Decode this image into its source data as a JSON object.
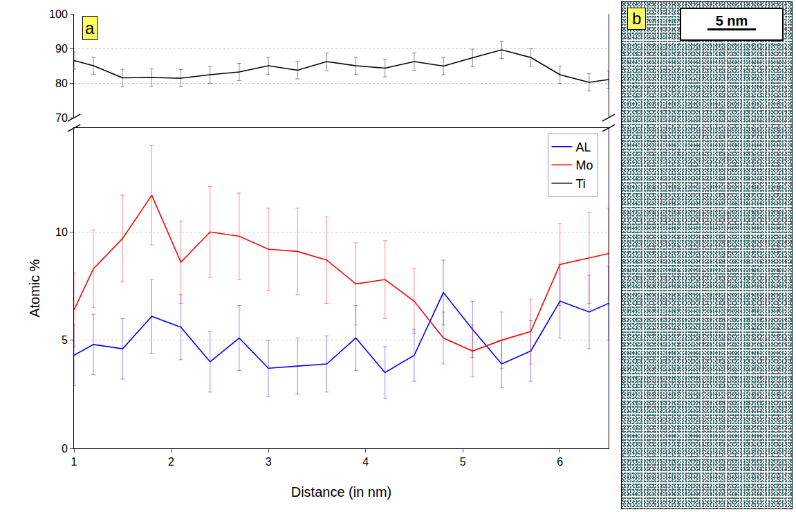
{
  "chart_data": {
    "type": "line",
    "panel_label": "a",
    "xlabel": "Distance (in nm)",
    "ylabel": "Atomic %",
    "x": [
      1.0,
      1.2,
      1.5,
      1.8,
      2.1,
      2.4,
      2.7,
      3.0,
      3.3,
      3.6,
      3.9,
      4.2,
      4.5,
      4.8,
      5.1,
      5.4,
      5.7,
      6.0,
      6.3,
      6.5
    ],
    "xlim": [
      1,
      6.5
    ],
    "xticks": [
      1,
      2,
      3,
      4,
      5,
      6
    ],
    "ylim": [
      0,
      14.8
    ],
    "yticks": [
      0,
      5,
      10
    ],
    "y2lim": [
      70,
      100
    ],
    "y2ticks": [
      70,
      80,
      90,
      100
    ],
    "grid": true,
    "legend": "top right",
    "series": [
      {
        "name": "AL",
        "color": "#0000ff",
        "values": [
          4.3,
          4.8,
          4.6,
          6.1,
          5.6,
          4.0,
          5.1,
          3.7,
          3.8,
          3.9,
          5.1,
          3.5,
          4.3,
          7.2,
          5.5,
          3.9,
          4.5,
          6.8,
          6.3,
          6.7
        ],
        "errors": [
          1.4,
          1.4,
          1.4,
          1.7,
          1.5,
          1.4,
          1.5,
          1.3,
          1.3,
          1.3,
          1.5,
          1.2,
          1.2,
          1.5,
          1.3,
          1.1,
          1.4,
          1.7,
          1.7,
          1.7
        ]
      },
      {
        "name": "Mo",
        "color": "#ff0000",
        "values": [
          6.4,
          8.3,
          9.7,
          11.7,
          8.6,
          10.0,
          9.8,
          9.2,
          9.1,
          8.7,
          7.6,
          7.8,
          6.8,
          5.1,
          4.5,
          5.0,
          5.4,
          8.5,
          8.8,
          9.0
        ],
        "errors": [
          1.7,
          1.8,
          2.0,
          2.3,
          1.9,
          2.1,
          2.0,
          1.9,
          2.0,
          2.0,
          1.9,
          1.8,
          1.5,
          1.2,
          1.2,
          1.3,
          1.5,
          1.9,
          2.1,
          2.1
        ]
      },
      {
        "name": "Ti",
        "color": "#000000",
        "axis": "y2",
        "values": [
          86.5,
          85.0,
          81.5,
          81.6,
          81.4,
          82.4,
          83.2,
          85.0,
          83.7,
          86.2,
          85.0,
          84.3,
          86.2,
          84.9,
          87.3,
          89.6,
          87.4,
          82.4,
          80.2,
          81.0
        ],
        "errors": [
          2.5,
          2.5,
          2.5,
          2.5,
          2.5,
          2.5,
          2.5,
          2.5,
          2.5,
          2.5,
          2.5,
          2.5,
          2.5,
          2.5,
          2.5,
          2.5,
          2.5,
          2.5,
          2.5,
          2.5
        ]
      }
    ]
  },
  "image_panel": {
    "panel_label": "b",
    "scale_bar": "5 nm"
  }
}
